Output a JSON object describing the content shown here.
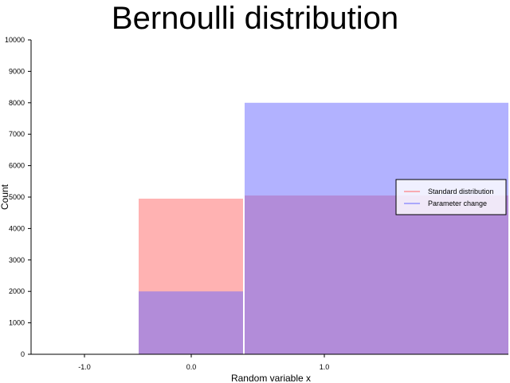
{
  "chart_data": {
    "type": "bar",
    "title": "Bernoulli distribution",
    "xlabel": "Random variable x",
    "ylabel": "Count",
    "ylim": [
      0,
      10000
    ],
    "y_ticks": [
      0,
      1000,
      2000,
      3000,
      4000,
      5000,
      6000,
      7000,
      8000,
      9000,
      10000
    ],
    "x_ticks": [
      "-1.0",
      "0.0",
      "1.0"
    ],
    "grid": false,
    "legend_position": "right",
    "series": [
      {
        "name": "Standard distribution",
        "color": "#ff6666",
        "opacity": 0.5,
        "bars": [
          {
            "category": "0",
            "value": 4950
          },
          {
            "category": "1",
            "value": 5050
          }
        ]
      },
      {
        "name": "Parameter change",
        "color": "#6666ff",
        "opacity": 0.5,
        "bars": [
          {
            "category": "0",
            "value": 2000
          },
          {
            "category": "1",
            "value": 8000
          }
        ]
      }
    ]
  }
}
